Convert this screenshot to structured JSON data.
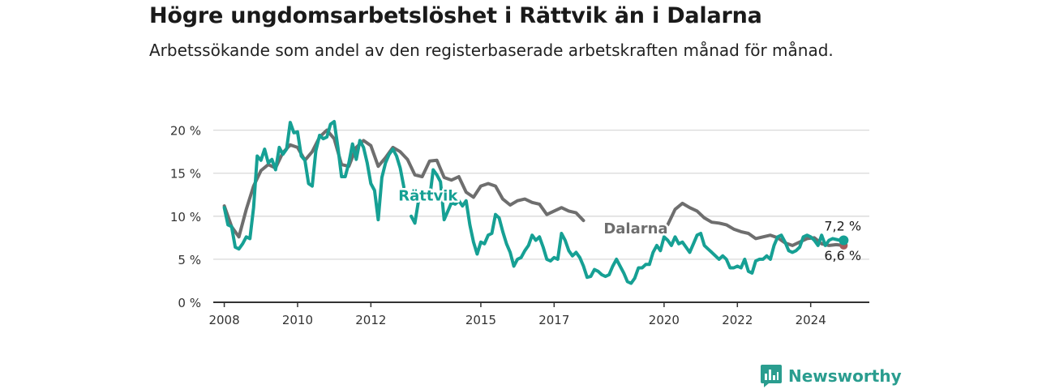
{
  "title": "Högre ungdomsarbetslöshet i Rättvik än i Dalarna",
  "subtitle": "Arbetssökande som andel av den registerbaserade arbetskraften månad för månad.",
  "brand": {
    "name": "Newsworthy",
    "icon": "newsworthy-logo-icon"
  },
  "colors": {
    "rattvik": "#16a094",
    "dalarna": "#6e6e6e",
    "grid": "#d9d9d9",
    "axis": "#333333"
  },
  "chart_data": {
    "type": "line",
    "xlabel": "",
    "ylabel": "",
    "xlim": [
      2007.7,
      2025.6
    ],
    "ylim": [
      0,
      21
    ],
    "grid": true,
    "legend": "none",
    "y_ticks": [
      {
        "value": 0,
        "label": "0 %"
      },
      {
        "value": 5,
        "label": "5 %"
      },
      {
        "value": 10,
        "label": "10 %"
      },
      {
        "value": 15,
        "label": "15 %"
      },
      {
        "value": 20,
        "label": "20 %"
      }
    ],
    "x_ticks": [
      {
        "value": 2008,
        "label": "2008"
      },
      {
        "value": 2010,
        "label": "2010"
      },
      {
        "value": 2012,
        "label": "2012"
      },
      {
        "value": 2015,
        "label": "2015"
      },
      {
        "value": 2017,
        "label": "2017"
      },
      {
        "value": 2020,
        "label": "2020"
      },
      {
        "value": 2022,
        "label": "2022"
      },
      {
        "value": 2024,
        "label": "2024"
      }
    ],
    "series": [
      {
        "name": "Dalarna",
        "end_label": "6,6 %",
        "label_at": [
          2018.35,
          8.0
        ],
        "x": [
          2008.0,
          2008.2,
          2008.4,
          2008.6,
          2008.8,
          2009.0,
          2009.2,
          2009.4,
          2009.6,
          2009.8,
          2010.0,
          2010.2,
          2010.4,
          2010.6,
          2010.8,
          2011.0,
          2011.2,
          2011.4,
          2011.6,
          2011.8,
          2012.0,
          2012.2,
          2012.4,
          2012.6,
          2012.8,
          2013.0,
          2013.2,
          2013.4,
          2013.6,
          2013.8,
          2014.0,
          2014.2,
          2014.4,
          2014.6,
          2014.8,
          2015.0,
          2015.2,
          2015.4,
          2015.6,
          2015.8,
          2016.0,
          2016.2,
          2016.4,
          2016.6,
          2016.8,
          2017.0,
          2017.2,
          2017.4,
          2017.6,
          2017.8,
          2018.0,
          2018.2,
          null,
          2020.1,
          2020.3,
          2020.5,
          2020.7,
          2020.9,
          2021.1,
          2021.3,
          2021.5,
          2021.7,
          2021.9,
          2022.1,
          2022.3,
          2022.5,
          2022.7,
          2022.9,
          2023.1,
          2023.3,
          2023.5,
          2023.7,
          2023.9,
          2024.1,
          2024.3,
          2024.5,
          2024.7,
          2024.9
        ],
        "y": [
          11.2,
          8.8,
          7.6,
          10.8,
          13.5,
          15.3,
          16.0,
          15.6,
          17.4,
          18.3,
          18.0,
          16.5,
          17.5,
          19.2,
          20.0,
          19.0,
          16.0,
          15.8,
          18.0,
          18.8,
          18.2,
          15.8,
          16.8,
          18.0,
          17.5,
          16.6,
          14.8,
          14.6,
          16.4,
          16.5,
          14.5,
          14.2,
          14.6,
          12.8,
          12.2,
          13.5,
          13.8,
          13.5,
          12.0,
          11.3,
          11.8,
          12.0,
          11.6,
          11.4,
          10.2,
          10.6,
          11.0,
          10.6,
          10.4,
          9.5,
          null,
          null,
          null,
          9.0,
          10.8,
          11.5,
          11.0,
          10.6,
          9.8,
          9.3,
          9.2,
          9.0,
          8.5,
          8.2,
          8.0,
          7.4,
          7.6,
          7.8,
          7.5,
          6.9,
          6.6,
          7.0,
          7.4,
          7.5,
          6.8,
          6.6,
          6.7,
          6.6
        ]
      },
      {
        "name": "Rättvik",
        "end_label": "7,2 %",
        "label_at": [
          2012.75,
          11.8
        ],
        "x": [
          2008.0,
          2008.1,
          2008.2,
          2008.3,
          2008.4,
          2008.5,
          2008.6,
          2008.7,
          2008.8,
          2008.9,
          2009.0,
          2009.1,
          2009.2,
          2009.3,
          2009.4,
          2009.5,
          2009.6,
          2009.7,
          2009.8,
          2009.9,
          2010.0,
          2010.1,
          2010.2,
          2010.3,
          2010.4,
          2010.5,
          2010.6,
          2010.7,
          2010.8,
          2010.9,
          2011.0,
          2011.1,
          2011.2,
          2011.3,
          2011.4,
          2011.5,
          2011.6,
          2011.7,
          2011.8,
          2011.9,
          2012.0,
          2012.1,
          2012.2,
          2012.3,
          2012.4,
          2012.5,
          2012.6,
          2012.7,
          2012.8,
          2012.9,
          2013.0,
          2013.1,
          2013.2,
          2013.3,
          2013.4,
          2013.5,
          2013.6,
          2013.7,
          2013.8,
          2013.9,
          2014.0,
          2014.1,
          2014.2,
          2014.3,
          2014.4,
          2014.5,
          2014.6,
          2014.7,
          2014.8,
          2014.9,
          2015.0,
          2015.1,
          2015.2,
          2015.3,
          2015.4,
          2015.5,
          2015.6,
          2015.7,
          2015.8,
          2015.9,
          2016.0,
          2016.1,
          2016.2,
          2016.3,
          2016.4,
          2016.5,
          2016.6,
          2016.7,
          2016.8,
          2016.9,
          2017.0,
          2017.1,
          2017.2,
          2017.3,
          2017.4,
          2017.5,
          2017.6,
          2017.7,
          2017.8,
          2017.9,
          2018.0,
          2018.1,
          2018.2,
          2018.3,
          2018.4,
          2018.5,
          2018.6,
          2018.7,
          2018.8,
          2018.9,
          2019.0,
          2019.1,
          2019.2,
          2019.3,
          2019.4,
          2019.5,
          2019.6,
          2019.7,
          2019.8,
          2019.9,
          2020.0,
          2020.1,
          2020.2,
          2020.3,
          2020.4,
          2020.5,
          2020.6,
          2020.7,
          2020.8,
          2020.9,
          2021.0,
          2021.1,
          2021.2,
          2021.3,
          2021.4,
          2021.5,
          2021.6,
          2021.7,
          2021.8,
          2021.9,
          2022.0,
          2022.1,
          2022.2,
          2022.3,
          2022.4,
          2022.5,
          2022.6,
          2022.7,
          2022.8,
          2022.9,
          2023.0,
          2023.1,
          2023.2,
          2023.3,
          2023.4,
          2023.5,
          2023.6,
          2023.7,
          2023.8,
          2023.9,
          2024.0,
          2024.1,
          2024.2,
          2024.3,
          2024.4,
          2024.5,
          2024.6,
          2024.7,
          2024.8,
          2024.9
        ],
        "y": [
          11.0,
          9.0,
          8.8,
          6.4,
          6.2,
          6.8,
          7.6,
          7.4,
          11.0,
          17.0,
          16.5,
          17.8,
          16.2,
          16.6,
          15.4,
          18.0,
          17.2,
          17.8,
          20.9,
          19.7,
          19.8,
          17.0,
          16.5,
          13.8,
          13.5,
          17.6,
          19.4,
          19.0,
          19.2,
          20.7,
          21.0,
          18.0,
          14.6,
          14.6,
          16.2,
          18.4,
          16.6,
          18.8,
          18.0,
          16.2,
          13.8,
          13.0,
          9.6,
          14.5,
          16.2,
          17.2,
          17.8,
          17.0,
          15.6,
          13.4,
          null,
          10.0,
          9.2,
          11.8,
          12.6,
          12.6,
          12.0,
          15.4,
          14.8,
          14.0,
          9.6,
          10.6,
          11.6,
          11.4,
          11.8,
          11.2,
          11.8,
          9.0,
          7.0,
          5.6,
          7.0,
          6.8,
          7.8,
          8.0,
          10.2,
          9.8,
          8.2,
          6.8,
          5.8,
          4.2,
          5.0,
          5.2,
          6.0,
          6.6,
          7.8,
          7.2,
          7.6,
          6.4,
          5.0,
          4.8,
          5.2,
          5.0,
          8.0,
          7.2,
          6.0,
          5.4,
          5.8,
          5.2,
          4.2,
          2.9,
          3.0,
          3.8,
          3.6,
          3.2,
          3.0,
          3.2,
          4.2,
          5.0,
          4.2,
          3.4,
          2.4,
          2.2,
          2.8,
          4.0,
          4.0,
          4.4,
          4.4,
          5.8,
          6.6,
          6.0,
          7.6,
          7.2,
          6.6,
          7.6,
          6.8,
          7.0,
          6.4,
          5.8,
          6.8,
          7.8,
          8.0,
          6.6,
          6.2,
          5.8,
          5.4,
          5.0,
          5.4,
          5.0,
          4.0,
          4.0,
          4.2,
          4.0,
          5.0,
          3.6,
          3.4,
          4.8,
          5.0,
          5.0,
          5.4,
          5.0,
          6.6,
          7.6,
          7.8,
          7.0,
          6.0,
          5.8,
          6.0,
          6.4,
          7.6,
          7.8,
          7.6,
          7.2,
          6.6,
          7.8,
          6.6,
          7.2,
          7.4,
          7.3,
          7.2,
          7.2
        ]
      }
    ]
  }
}
